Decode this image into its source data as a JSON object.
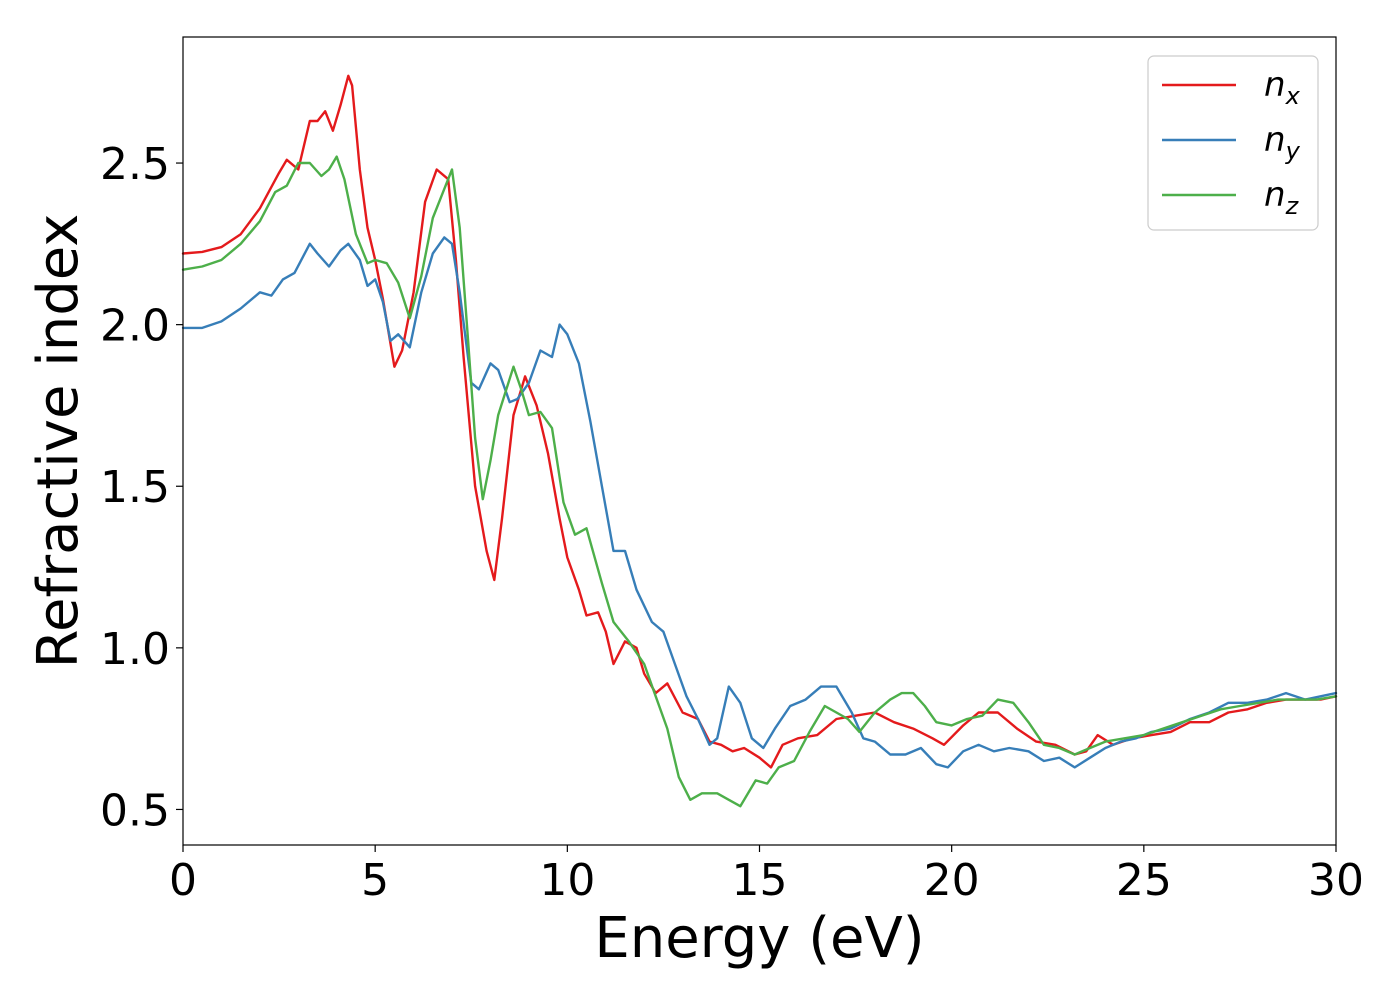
{
  "chart_data": {
    "type": "line",
    "title": "",
    "xlabel": "Energy (eV)",
    "ylabel": "Refractive index",
    "xlim": [
      0,
      30
    ],
    "ylim": [
      0.39,
      2.89
    ],
    "xticks": [
      0,
      5,
      10,
      15,
      20,
      25,
      30
    ],
    "yticks": [
      0.5,
      1.0,
      1.5,
      2.0,
      2.5
    ],
    "xtick_labels": [
      "0",
      "5",
      "10",
      "15",
      "20",
      "25",
      "30"
    ],
    "ytick_labels": [
      "0.5",
      "1.0",
      "1.5",
      "2.0",
      "2.5"
    ],
    "grid": false,
    "legend_position": "top-right",
    "series": [
      {
        "name": "n_x",
        "label_base": "n",
        "label_sub": "x",
        "color": "#e41a1c",
        "points": [
          [
            0,
            2.22
          ],
          [
            0.5,
            2.225
          ],
          [
            1,
            2.24
          ],
          [
            1.5,
            2.28
          ],
          [
            2,
            2.36
          ],
          [
            2.5,
            2.47
          ],
          [
            2.7,
            2.51
          ],
          [
            3.0,
            2.48
          ],
          [
            3.3,
            2.63
          ],
          [
            3.5,
            2.63
          ],
          [
            3.7,
            2.66
          ],
          [
            3.9,
            2.6
          ],
          [
            4.1,
            2.68
          ],
          [
            4.3,
            2.77
          ],
          [
            4.4,
            2.74
          ],
          [
            4.6,
            2.48
          ],
          [
            4.8,
            2.3
          ],
          [
            5.0,
            2.2
          ],
          [
            5.2,
            2.08
          ],
          [
            5.5,
            1.87
          ],
          [
            5.7,
            1.92
          ],
          [
            6.0,
            2.1
          ],
          [
            6.3,
            2.38
          ],
          [
            6.6,
            2.48
          ],
          [
            6.9,
            2.45
          ],
          [
            7.1,
            2.2
          ],
          [
            7.3,
            1.9
          ],
          [
            7.6,
            1.5
          ],
          [
            7.9,
            1.3
          ],
          [
            8.1,
            1.21
          ],
          [
            8.3,
            1.4
          ],
          [
            8.6,
            1.72
          ],
          [
            8.9,
            1.84
          ],
          [
            9.2,
            1.75
          ],
          [
            9.5,
            1.6
          ],
          [
            9.8,
            1.4
          ],
          [
            10.0,
            1.28
          ],
          [
            10.3,
            1.18
          ],
          [
            10.5,
            1.1
          ],
          [
            10.8,
            1.11
          ],
          [
            11.0,
            1.05
          ],
          [
            11.2,
            0.95
          ],
          [
            11.5,
            1.02
          ],
          [
            11.8,
            1.0
          ],
          [
            12.0,
            0.92
          ],
          [
            12.3,
            0.86
          ],
          [
            12.6,
            0.89
          ],
          [
            13.0,
            0.8
          ],
          [
            13.4,
            0.78
          ],
          [
            13.7,
            0.71
          ],
          [
            14.0,
            0.7
          ],
          [
            14.3,
            0.68
          ],
          [
            14.6,
            0.69
          ],
          [
            15.0,
            0.66
          ],
          [
            15.3,
            0.63
          ],
          [
            15.6,
            0.7
          ],
          [
            16.0,
            0.72
          ],
          [
            16.5,
            0.73
          ],
          [
            17.0,
            0.78
          ],
          [
            17.5,
            0.79
          ],
          [
            18.0,
            0.8
          ],
          [
            18.5,
            0.77
          ],
          [
            19.0,
            0.75
          ],
          [
            19.5,
            0.72
          ],
          [
            19.8,
            0.7
          ],
          [
            20.3,
            0.76
          ],
          [
            20.7,
            0.8
          ],
          [
            21.2,
            0.8
          ],
          [
            21.7,
            0.75
          ],
          [
            22.2,
            0.71
          ],
          [
            22.7,
            0.7
          ],
          [
            23.2,
            0.67
          ],
          [
            23.5,
            0.68
          ],
          [
            23.8,
            0.73
          ],
          [
            24.2,
            0.7
          ],
          [
            24.7,
            0.72
          ],
          [
            25.2,
            0.73
          ],
          [
            25.7,
            0.74
          ],
          [
            26.2,
            0.77
          ],
          [
            26.7,
            0.77
          ],
          [
            27.2,
            0.8
          ],
          [
            27.7,
            0.81
          ],
          [
            28.2,
            0.83
          ],
          [
            28.7,
            0.84
          ],
          [
            29.2,
            0.84
          ],
          [
            29.6,
            0.84
          ],
          [
            30,
            0.85
          ]
        ]
      },
      {
        "name": "n_y",
        "label_base": "n",
        "label_sub": "y",
        "color": "#377eb8",
        "points": [
          [
            0,
            1.99
          ],
          [
            0.5,
            1.99
          ],
          [
            1,
            2.01
          ],
          [
            1.5,
            2.05
          ],
          [
            2,
            2.1
          ],
          [
            2.3,
            2.09
          ],
          [
            2.6,
            2.14
          ],
          [
            2.9,
            2.16
          ],
          [
            3.3,
            2.25
          ],
          [
            3.5,
            2.22
          ],
          [
            3.8,
            2.18
          ],
          [
            4.1,
            2.23
          ],
          [
            4.3,
            2.25
          ],
          [
            4.6,
            2.2
          ],
          [
            4.8,
            2.12
          ],
          [
            5.0,
            2.14
          ],
          [
            5.2,
            2.07
          ],
          [
            5.4,
            1.95
          ],
          [
            5.6,
            1.97
          ],
          [
            5.9,
            1.93
          ],
          [
            6.2,
            2.1
          ],
          [
            6.5,
            2.22
          ],
          [
            6.8,
            2.27
          ],
          [
            7.0,
            2.25
          ],
          [
            7.2,
            2.1
          ],
          [
            7.5,
            1.82
          ],
          [
            7.7,
            1.8
          ],
          [
            8.0,
            1.88
          ],
          [
            8.2,
            1.86
          ],
          [
            8.5,
            1.76
          ],
          [
            8.7,
            1.77
          ],
          [
            9.0,
            1.82
          ],
          [
            9.3,
            1.92
          ],
          [
            9.6,
            1.9
          ],
          [
            9.8,
            2.0
          ],
          [
            10.0,
            1.97
          ],
          [
            10.3,
            1.88
          ],
          [
            10.6,
            1.7
          ],
          [
            10.9,
            1.5
          ],
          [
            11.2,
            1.3
          ],
          [
            11.5,
            1.3
          ],
          [
            11.8,
            1.18
          ],
          [
            12.2,
            1.08
          ],
          [
            12.5,
            1.05
          ],
          [
            12.8,
            0.95
          ],
          [
            13.1,
            0.85
          ],
          [
            13.4,
            0.78
          ],
          [
            13.7,
            0.7
          ],
          [
            13.9,
            0.72
          ],
          [
            14.2,
            0.88
          ],
          [
            14.5,
            0.83
          ],
          [
            14.8,
            0.72
          ],
          [
            15.1,
            0.69
          ],
          [
            15.4,
            0.75
          ],
          [
            15.8,
            0.82
          ],
          [
            16.2,
            0.84
          ],
          [
            16.6,
            0.88
          ],
          [
            17.0,
            0.88
          ],
          [
            17.4,
            0.8
          ],
          [
            17.7,
            0.72
          ],
          [
            18.0,
            0.71
          ],
          [
            18.4,
            0.67
          ],
          [
            18.8,
            0.67
          ],
          [
            19.2,
            0.69
          ],
          [
            19.6,
            0.64
          ],
          [
            19.9,
            0.63
          ],
          [
            20.3,
            0.68
          ],
          [
            20.7,
            0.7
          ],
          [
            21.1,
            0.68
          ],
          [
            21.5,
            0.69
          ],
          [
            22.0,
            0.68
          ],
          [
            22.4,
            0.65
          ],
          [
            22.8,
            0.66
          ],
          [
            23.2,
            0.63
          ],
          [
            23.6,
            0.66
          ],
          [
            24.0,
            0.69
          ],
          [
            24.4,
            0.71
          ],
          [
            24.8,
            0.72
          ],
          [
            25.2,
            0.74
          ],
          [
            25.7,
            0.75
          ],
          [
            26.2,
            0.78
          ],
          [
            26.7,
            0.8
          ],
          [
            27.2,
            0.83
          ],
          [
            27.7,
            0.83
          ],
          [
            28.2,
            0.84
          ],
          [
            28.7,
            0.86
          ],
          [
            29.2,
            0.84
          ],
          [
            29.6,
            0.85
          ],
          [
            30,
            0.86
          ]
        ]
      },
      {
        "name": "n_z",
        "label_base": "n",
        "label_sub": "z",
        "color": "#4daf4a",
        "points": [
          [
            0,
            2.17
          ],
          [
            0.5,
            2.18
          ],
          [
            1,
            2.2
          ],
          [
            1.5,
            2.25
          ],
          [
            2,
            2.32
          ],
          [
            2.4,
            2.41
          ],
          [
            2.7,
            2.43
          ],
          [
            3.0,
            2.5
          ],
          [
            3.3,
            2.5
          ],
          [
            3.6,
            2.46
          ],
          [
            3.8,
            2.48
          ],
          [
            4.0,
            2.52
          ],
          [
            4.2,
            2.45
          ],
          [
            4.5,
            2.28
          ],
          [
            4.8,
            2.19
          ],
          [
            5.0,
            2.2
          ],
          [
            5.3,
            2.19
          ],
          [
            5.6,
            2.13
          ],
          [
            5.9,
            2.02
          ],
          [
            6.2,
            2.15
          ],
          [
            6.5,
            2.33
          ],
          [
            6.8,
            2.42
          ],
          [
            7.0,
            2.48
          ],
          [
            7.2,
            2.3
          ],
          [
            7.4,
            1.98
          ],
          [
            7.6,
            1.65
          ],
          [
            7.8,
            1.46
          ],
          [
            8.0,
            1.58
          ],
          [
            8.2,
            1.72
          ],
          [
            8.6,
            1.87
          ],
          [
            8.8,
            1.8
          ],
          [
            9.0,
            1.72
          ],
          [
            9.3,
            1.73
          ],
          [
            9.6,
            1.68
          ],
          [
            9.9,
            1.45
          ],
          [
            10.2,
            1.35
          ],
          [
            10.5,
            1.37
          ],
          [
            10.9,
            1.2
          ],
          [
            11.2,
            1.08
          ],
          [
            11.6,
            1.02
          ],
          [
            12.0,
            0.95
          ],
          [
            12.3,
            0.85
          ],
          [
            12.6,
            0.75
          ],
          [
            12.9,
            0.6
          ],
          [
            13.2,
            0.53
          ],
          [
            13.5,
            0.55
          ],
          [
            13.9,
            0.55
          ],
          [
            14.2,
            0.53
          ],
          [
            14.5,
            0.51
          ],
          [
            14.9,
            0.59
          ],
          [
            15.2,
            0.58
          ],
          [
            15.5,
            0.63
          ],
          [
            15.9,
            0.65
          ],
          [
            16.3,
            0.74
          ],
          [
            16.7,
            0.82
          ],
          [
            17.0,
            0.8
          ],
          [
            17.3,
            0.78
          ],
          [
            17.6,
            0.74
          ],
          [
            18.0,
            0.8
          ],
          [
            18.4,
            0.84
          ],
          [
            18.7,
            0.86
          ],
          [
            19.0,
            0.86
          ],
          [
            19.3,
            0.82
          ],
          [
            19.6,
            0.77
          ],
          [
            20.0,
            0.76
          ],
          [
            20.4,
            0.78
          ],
          [
            20.8,
            0.79
          ],
          [
            21.2,
            0.84
          ],
          [
            21.6,
            0.83
          ],
          [
            22.0,
            0.77
          ],
          [
            22.4,
            0.7
          ],
          [
            22.8,
            0.69
          ],
          [
            23.2,
            0.67
          ],
          [
            23.6,
            0.69
          ],
          [
            24.0,
            0.71
          ],
          [
            24.5,
            0.72
          ],
          [
            25.0,
            0.73
          ],
          [
            25.5,
            0.75
          ],
          [
            26.0,
            0.77
          ],
          [
            26.5,
            0.79
          ],
          [
            27.0,
            0.81
          ],
          [
            27.5,
            0.82
          ],
          [
            28.0,
            0.83
          ],
          [
            28.5,
            0.84
          ],
          [
            29.0,
            0.84
          ],
          [
            29.5,
            0.84
          ],
          [
            30,
            0.85
          ]
        ]
      }
    ]
  }
}
